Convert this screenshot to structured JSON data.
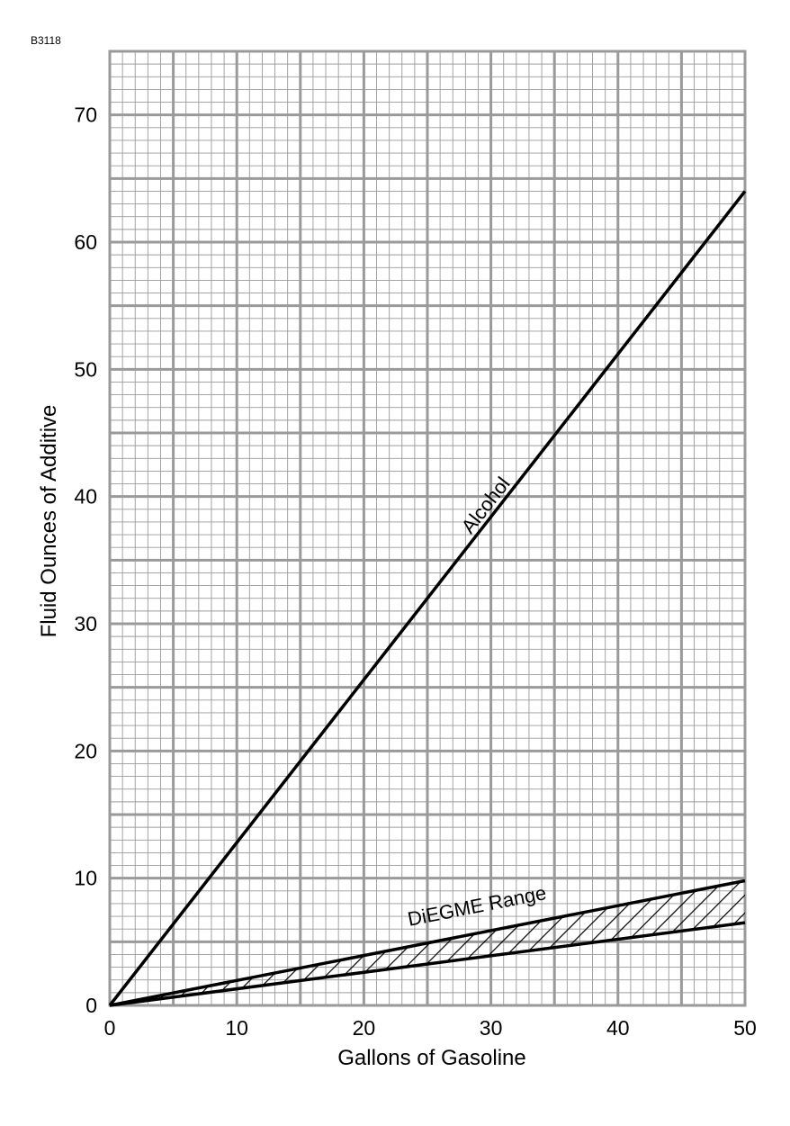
{
  "figure_id": "B3118",
  "chart_data": {
    "type": "line",
    "title": "",
    "xlabel": "Gallons of Gasoline",
    "ylabel": "Fluid Ounces of Additive",
    "xlim": [
      0,
      50
    ],
    "ylim": [
      0,
      75
    ],
    "x_ticks": [
      0,
      10,
      20,
      30,
      40,
      50
    ],
    "y_ticks": [
      0,
      10,
      20,
      30,
      40,
      50,
      60,
      70
    ],
    "grid": true,
    "grid_major": {
      "x": 5,
      "y": 5
    },
    "grid_minor": {
      "x": 1,
      "y": 1
    },
    "series": [
      {
        "name": "Alcohol",
        "x": [
          0,
          50
        ],
        "y": [
          0,
          64
        ]
      }
    ],
    "bands": [
      {
        "name": "DiEGME Range",
        "x": [
          0,
          50
        ],
        "upper": [
          0,
          9.8
        ],
        "lower": [
          0,
          6.5
        ],
        "fill": "hatched"
      }
    ],
    "annotations": [
      {
        "text": "Alcohol",
        "x": 30,
        "y": 39,
        "rotate_with": "Alcohol"
      },
      {
        "text": "DiEGME Range",
        "x": 29,
        "y": 7.3,
        "rotate_with": "DiEGME Range"
      }
    ],
    "colors": {
      "grid": "#9a9a9a",
      "lines": "#000000",
      "background": "#ffffff"
    }
  }
}
